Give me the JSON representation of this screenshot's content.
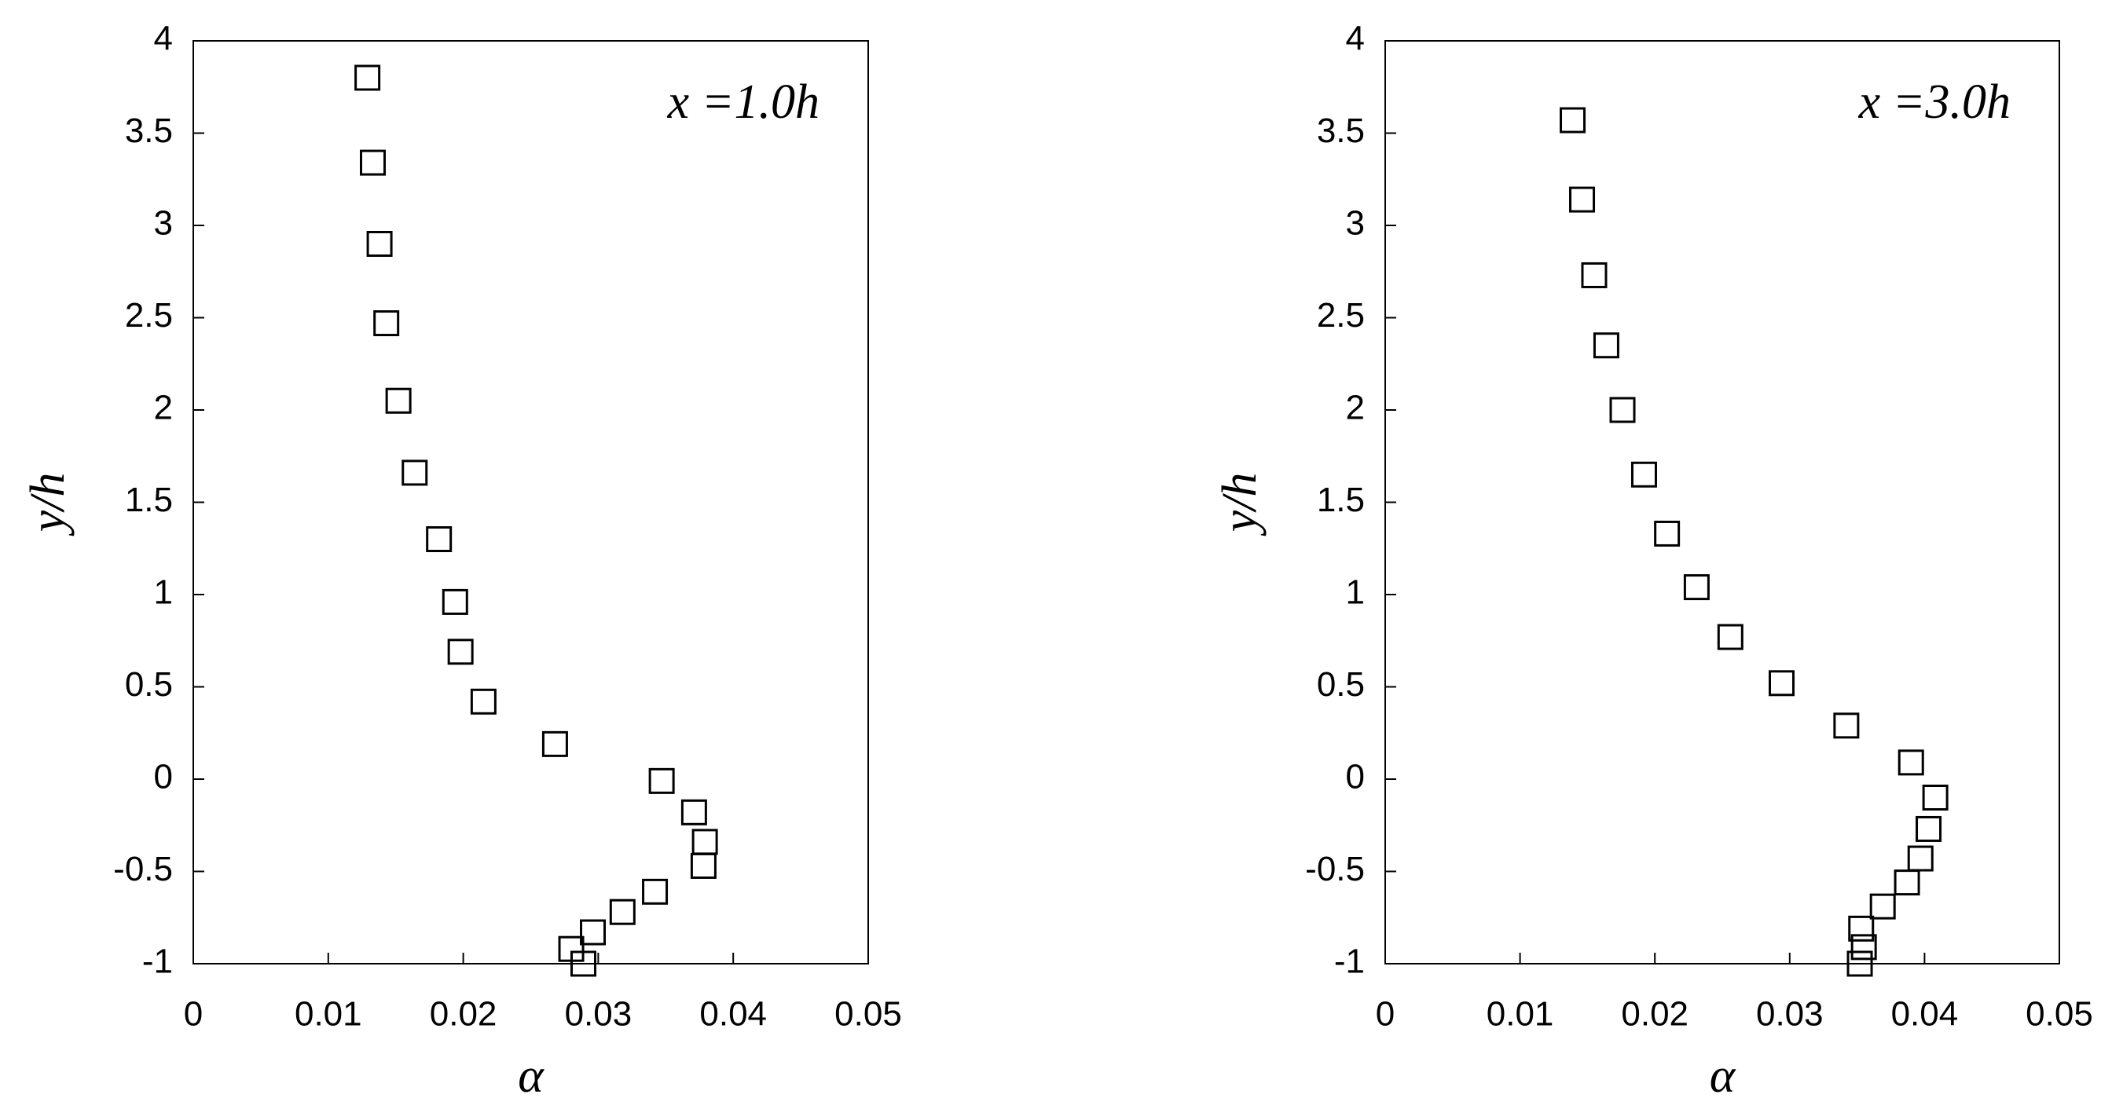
{
  "chart_data": [
    {
      "type": "scatter",
      "annotation": "x =1.0h",
      "xlabel": "α",
      "ylabel": "y/h",
      "color": "#000000",
      "xlim": [
        0,
        0.05
      ],
      "xticks": [
        0,
        0.01,
        0.02,
        0.03,
        0.04,
        0.05
      ],
      "ylim": [
        -1,
        4
      ],
      "yticks": [
        -1,
        -0.5,
        0,
        0.5,
        1,
        1.5,
        2,
        2.5,
        3,
        3.5,
        4
      ],
      "x": [
        0.0129,
        0.0133,
        0.0138,
        0.0143,
        0.0152,
        0.0164,
        0.0182,
        0.0194,
        0.0198,
        0.0215,
        0.0268,
        0.0347,
        0.0371,
        0.0379,
        0.0378,
        0.0342,
        0.0318,
        0.0296,
        0.028,
        0.0289
      ],
      "values": [
        3.8,
        3.34,
        2.9,
        2.47,
        2.05,
        1.66,
        1.3,
        0.96,
        0.69,
        0.42,
        0.19,
        -0.01,
        -0.18,
        -0.34,
        -0.47,
        -0.61,
        -0.72,
        -0.83,
        -0.92,
        -1.0
      ]
    },
    {
      "type": "scatter",
      "annotation": "x =3.0h",
      "xlabel": "α",
      "ylabel": "y/h",
      "color": "#000000",
      "xlim": [
        0,
        0.05
      ],
      "xticks": [
        0,
        0.01,
        0.02,
        0.03,
        0.04,
        0.05
      ],
      "ylim": [
        -1,
        4
      ],
      "yticks": [
        -1,
        -0.5,
        0,
        0.5,
        1,
        1.5,
        2,
        2.5,
        3,
        3.5,
        4
      ],
      "x": [
        0.0139,
        0.0146,
        0.0155,
        0.0164,
        0.0176,
        0.0192,
        0.0209,
        0.0231,
        0.0256,
        0.0294,
        0.0342,
        0.039,
        0.0408,
        0.0403,
        0.0397,
        0.0387,
        0.0369,
        0.0353,
        0.0355,
        0.0352
      ],
      "values": [
        3.57,
        3.14,
        2.73,
        2.35,
        2.0,
        1.65,
        1.33,
        1.04,
        0.77,
        0.52,
        0.29,
        0.09,
        -0.1,
        -0.27,
        -0.43,
        -0.56,
        -0.69,
        -0.81,
        -0.91,
        -1.0
      ]
    }
  ]
}
